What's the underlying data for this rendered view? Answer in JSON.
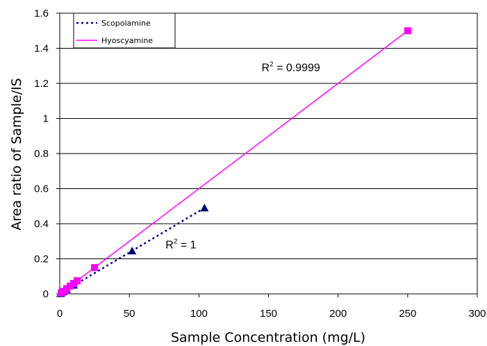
{
  "chart_data": {
    "type": "scatter",
    "xlabel": "Sample Concentration (mg/L)",
    "ylabel": "Area ratio of Sample/IS",
    "xlim": [
      0,
      300
    ],
    "ylim": [
      0,
      1.6
    ],
    "xticks": [
      "0",
      "50",
      "100",
      "150",
      "200",
      "250",
      "300"
    ],
    "yticks": [
      "0",
      "0.2",
      "0.4",
      "0.6",
      "0.8",
      "1",
      "1.2",
      "1.4",
      "1.6"
    ],
    "grid": "horizontal",
    "legend_position": "top-left",
    "series": [
      {
        "name": "Scopolamine",
        "marker": "triangle",
        "line": "dotted",
        "color": "#000080",
        "x": [
          0.5,
          1,
          2.5,
          5,
          10,
          52,
          104
        ],
        "y": [
          0.002,
          0.005,
          0.012,
          0.025,
          0.05,
          0.245,
          0.49
        ]
      },
      {
        "name": "Hyoscyamine",
        "marker": "square",
        "line": "solid",
        "color": "#ff00ff",
        "x": [
          1,
          2.5,
          5,
          7.5,
          10,
          12.5,
          25,
          250
        ],
        "y": [
          0.006,
          0.015,
          0.03,
          0.045,
          0.06,
          0.075,
          0.15,
          1.5
        ]
      }
    ],
    "annotations": [
      {
        "id": "hyoscyamine_r2",
        "base": "R",
        "sup": "2",
        "rest": " = 0.9999",
        "x": 145,
        "y": 1.27
      },
      {
        "id": "scopolamine_r2",
        "base": "R",
        "sup": "2",
        "rest": " = 1",
        "x": 76,
        "y": 0.26
      }
    ]
  }
}
